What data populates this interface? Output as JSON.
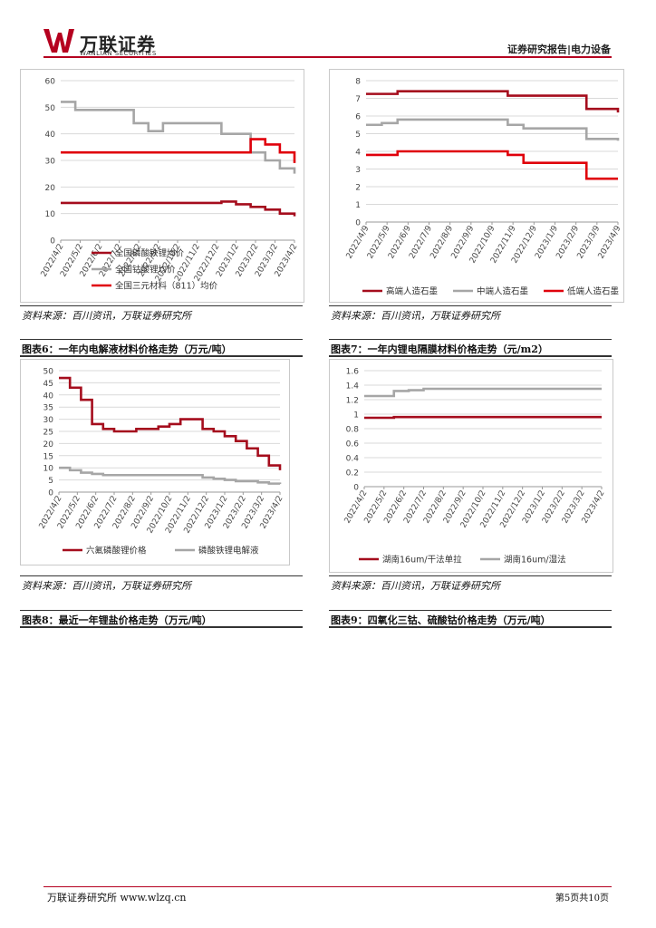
{
  "header": {
    "logo_cn": "万联证券",
    "logo_en": "WANLIAN SECURITIES",
    "report_type": "证券研究报告|电力设备"
  },
  "figures": [
    {
      "source": "资料来源：百川资讯，万联证券研究所",
      "caption": "图表6：一年内电解液材料价格走势（万元/吨）"
    },
    {
      "source": "资料来源：百川资讯，万联证券研究所",
      "caption": "图表7：一年内锂电隔膜材料价格走势（元/m2）"
    },
    {
      "source": "资料来源：百川资讯，万联证券研究所",
      "caption": "图表8：最近一年锂盐价格走势（万元/吨）"
    },
    {
      "source": "资料来源：百川资讯，万联证券研究所",
      "caption": "图表9：四氧化三钴、硫酸钴价格走势（万元/吨）"
    }
  ],
  "footer": {
    "left": "万联证券研究所 www.wlzq.cn",
    "right": "第5页共10页"
  },
  "chart_data": [
    {
      "type": "line",
      "ylim": [
        0,
        60
      ],
      "yticks": [
        "0",
        "10",
        "20",
        "30",
        "40",
        "50",
        "60"
      ],
      "x_labels": [
        "2022/4/2",
        "2022/5/2",
        "2022/6/2",
        "2022/7/2",
        "2022/8/2",
        "2022/9/2",
        "2022/10/2",
        "2022/11/2",
        "2022/12/2",
        "2023/1/2",
        "2023/2/2",
        "2023/3/2",
        "2023/4/2"
      ],
      "legend_position": "bottom",
      "series": [
        {
          "name": "全国磷酸铁锂均价",
          "color": "#a50d1d",
          "values": [
            14,
            14,
            14,
            14,
            14,
            14,
            14,
            14,
            14,
            14,
            14,
            14.5,
            13.5,
            12.5,
            11.5,
            10,
            9
          ]
        },
        {
          "name": "全国钴酸锂均价",
          "color": "#a6a6a6",
          "values": [
            52,
            49,
            49,
            49,
            49,
            44,
            41,
            44,
            44,
            44,
            44,
            40,
            40,
            33,
            30,
            27,
            25
          ]
        },
        {
          "name": "全国三元材料（811）均价",
          "color": "#e0000b",
          "values": [
            33,
            33,
            33,
            33,
            33,
            33,
            33,
            33,
            33,
            33,
            33,
            33,
            33,
            38,
            36,
            33,
            29
          ]
        }
      ]
    },
    {
      "type": "line",
      "ylim": [
        0,
        8
      ],
      "yticks": [
        "0",
        "1",
        "2",
        "3",
        "4",
        "5",
        "6",
        "7",
        "8"
      ],
      "x_labels": [
        "2022/4/9",
        "2022/5/9",
        "2022/6/9",
        "2022/7/9",
        "2022/8/9",
        "2022/9/9",
        "2022/10/9",
        "2022/11/9",
        "2022/12/9",
        "2023/1/9",
        "2023/2/9",
        "2023/3/9",
        "2023/4/9"
      ],
      "legend_position": "bottom",
      "series": [
        {
          "name": "高端人造石墨",
          "color": "#a50d1d",
          "values": [
            7.25,
            7.25,
            7.4,
            7.4,
            7.4,
            7.4,
            7.4,
            7.4,
            7.4,
            7.15,
            7.15,
            7.15,
            7.15,
            7.15,
            6.4,
            6.4,
            6.2
          ]
        },
        {
          "name": "中端人造石墨",
          "color": "#a6a6a6",
          "values": [
            5.5,
            5.6,
            5.8,
            5.8,
            5.8,
            5.8,
            5.8,
            5.8,
            5.8,
            5.5,
            5.3,
            5.3,
            5.3,
            5.3,
            4.7,
            4.7,
            4.6
          ]
        },
        {
          "name": "低端人造石墨",
          "color": "#e0000b",
          "values": [
            3.8,
            3.8,
            4.0,
            4.0,
            4.0,
            4.0,
            4.0,
            4.0,
            4.0,
            3.8,
            3.35,
            3.35,
            3.35,
            3.35,
            2.45,
            2.45,
            2.45
          ]
        }
      ]
    },
    {
      "type": "line",
      "ylim": [
        0,
        50
      ],
      "yticks": [
        "0",
        "5",
        "10",
        "15",
        "20",
        "25",
        "30",
        "35",
        "40",
        "45",
        "50"
      ],
      "x_labels": [
        "2022/4/2",
        "2022/5/2",
        "2022/6/2",
        "2022/7/2",
        "2022/8/2",
        "2022/9/2",
        "2022/10/2",
        "2022/11/2",
        "2022/12/2",
        "2023/1/2",
        "2023/2/2",
        "2023/3/2",
        "2023/4/2"
      ],
      "legend_position": "bottom",
      "series": [
        {
          "name": "六氟磷酸锂价格",
          "color": "#a50d1d",
          "values": [
            47,
            43,
            38,
            28,
            26,
            25,
            25,
            26,
            26,
            27,
            28,
            30,
            30,
            26,
            25,
            23,
            21,
            18,
            15,
            11,
            9
          ]
        },
        {
          "name": "磷酸铁锂电解液",
          "color": "#a6a6a6",
          "values": [
            10,
            9,
            8,
            7.5,
            7,
            7,
            7,
            7,
            7,
            7,
            7,
            7,
            7,
            6,
            5.5,
            5,
            4.5,
            4.5,
            4,
            3.5,
            3.3
          ]
        }
      ]
    },
    {
      "type": "line",
      "ylim": [
        0,
        1.6
      ],
      "yticks": [
        "0",
        "0.2",
        "0.4",
        "0.6",
        "0.8",
        "1",
        "1.2",
        "1.4",
        "1.6"
      ],
      "x_labels": [
        "2022/4/2",
        "2022/5/2",
        "2022/6/2",
        "2022/7/2",
        "2022/8/2",
        "2022/9/2",
        "2022/10/2",
        "2022/11/2",
        "2022/12/2",
        "2023/1/2",
        "2023/2/2",
        "2023/3/2",
        "2023/4/2"
      ],
      "legend_position": "bottom",
      "series": [
        {
          "name": "湖南16um/干法单拉",
          "color": "#a50d1d",
          "values": [
            0.95,
            0.95,
            0.96,
            0.96,
            0.96,
            0.96,
            0.96,
            0.96,
            0.96,
            0.96,
            0.96,
            0.96,
            0.96,
            0.96,
            0.96,
            0.96,
            0.96
          ]
        },
        {
          "name": "湖南16um/湿法",
          "color": "#a6a6a6",
          "values": [
            1.25,
            1.25,
            1.32,
            1.33,
            1.35,
            1.35,
            1.35,
            1.35,
            1.35,
            1.35,
            1.35,
            1.35,
            1.35,
            1.35,
            1.35,
            1.35,
            1.35
          ]
        }
      ]
    }
  ]
}
